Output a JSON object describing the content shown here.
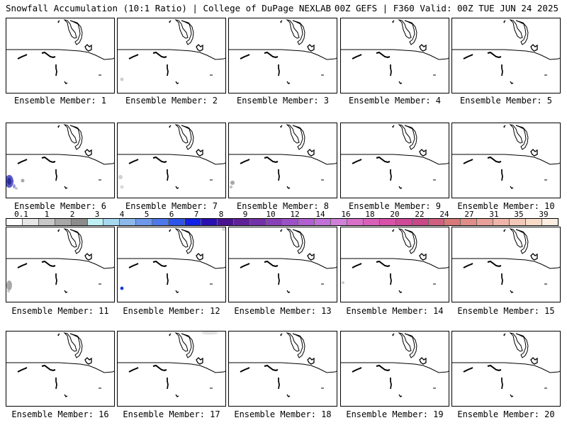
{
  "header": {
    "left": "Snowfall Accumulation (10:1 Ratio) | College of DuPage NEXLAB",
    "right": "00Z GEFS | F360 Valid: 00Z TUE JUN 24 2025"
  },
  "map_features": {
    "land_outline_color": "#000000",
    "border_line": "horizontal state/provincial border with coastal outline"
  },
  "members": [
    {
      "label": "Ensemble Member: 1",
      "snow": "none"
    },
    {
      "label": "Ensemble Member: 2",
      "snow": "trace gray speck west edge"
    },
    {
      "label": "Ensemble Member: 3",
      "snow": "none"
    },
    {
      "label": "Ensemble Member: 4",
      "snow": "none"
    },
    {
      "label": "Ensemble Member: 5",
      "snow": "none"
    },
    {
      "label": "Ensemble Member: 6",
      "snow": "purple/blue blob west edge"
    },
    {
      "label": "Ensemble Member: 7",
      "snow": "light gray patches"
    },
    {
      "label": "Ensemble Member: 8",
      "snow": "gray patches"
    },
    {
      "label": "Ensemble Member: 9",
      "snow": "none"
    },
    {
      "label": "Ensemble Member: 10",
      "snow": "none"
    },
    {
      "label": "Ensemble Member: 11",
      "snow": "gray patches west edge"
    },
    {
      "label": "Ensemble Member: 12",
      "snow": "small blue spot"
    },
    {
      "label": "Ensemble Member: 13",
      "snow": "none"
    },
    {
      "label": "Ensemble Member: 14",
      "snow": "trace gray"
    },
    {
      "label": "Ensemble Member: 15",
      "snow": "none"
    },
    {
      "label": "Ensemble Member: 16",
      "snow": "none"
    },
    {
      "label": "Ensemble Member: 17",
      "snow": "trace gray top"
    },
    {
      "label": "Ensemble Member: 18",
      "snow": "none"
    },
    {
      "label": "Ensemble Member: 19",
      "snow": "none"
    },
    {
      "label": "Ensemble Member: 20",
      "snow": "none"
    }
  ],
  "colorbar": {
    "tick_labels": [
      "0.1",
      "1",
      "2",
      "3",
      "4",
      "5",
      "6",
      "7",
      "8",
      "9",
      "10",
      "12",
      "14",
      "16",
      "18",
      "20",
      "22",
      "24",
      "27",
      "31",
      "35",
      "39"
    ],
    "colors": [
      "#ffffff",
      "#e6e6e6",
      "#c8c8c8",
      "#a8a8a8",
      "#8c8c8c",
      "#bff0f4",
      "#a6d8f0",
      "#8cb8ec",
      "#6e98ea",
      "#4c78ea",
      "#2c54ea",
      "#1020e8",
      "#2a10b0",
      "#4a1490",
      "#602098",
      "#7430a8",
      "#8840b8",
      "#9c50c8",
      "#b060d0",
      "#c070d8",
      "#d080d8",
      "#d870c8",
      "#d860b8",
      "#d850a8",
      "#d04898",
      "#c84888",
      "#d06080",
      "#d87878",
      "#e08c88",
      "#e8a098",
      "#f0b4a8",
      "#f4c8b8",
      "#f8dcc8",
      "#fceee0"
    ]
  }
}
